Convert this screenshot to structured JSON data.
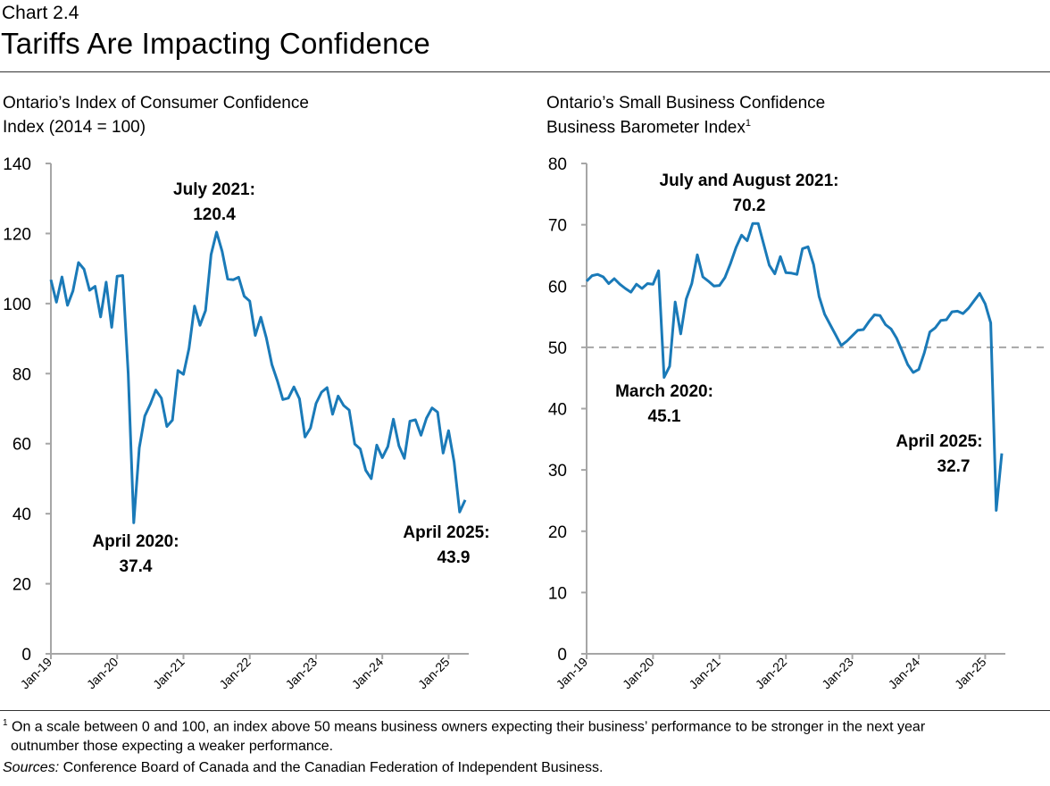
{
  "header": {
    "chart_number": "Chart 2.4",
    "title": "Tariffs Are Impacting Confidence"
  },
  "footnote": {
    "marker": "1",
    "line1": "On a scale between 0 and 100, an index above 50 means business owners expecting their business’ performance to be stronger in the next year",
    "line2": "outnumber those expecting a weaker performance.",
    "sources_label": "Sources:",
    "sources_text": " Conference Board of Canada and the Canadian Federation of Independent Business."
  },
  "colors": {
    "line": "#1a7ab8",
    "reference_line": "#a6a6a6",
    "axis": "#a6a6a6"
  },
  "chart_data": [
    {
      "type": "line",
      "title": "Ontario’s Index of Consumer Confidence",
      "ylabel": "Index (2014 = 100)",
      "ylim": [
        0,
        140
      ],
      "yticks": [
        0,
        20,
        40,
        60,
        80,
        100,
        120,
        140
      ],
      "xtick_labels": [
        "Jan-19",
        "Jan-20",
        "Jan-21",
        "Jan-22",
        "Jan-23",
        "Jan-24",
        "Jan-25"
      ],
      "x_start": "2019-01",
      "x_end": "2025-04",
      "frequency": "monthly",
      "grid": false,
      "legend": "none",
      "values": [
        106.8,
        100.4,
        107.6,
        99.5,
        103.6,
        111.7,
        109.8,
        103.8,
        104.9,
        96.2,
        106.1,
        93.2,
        107.8,
        108.0,
        80.0,
        37.4,
        58.8,
        67.9,
        71.3,
        75.3,
        73.0,
        64.9,
        66.7,
        80.9,
        79.8,
        87.2,
        99.3,
        93.8,
        98.0,
        114.0,
        120.4,
        114.9,
        107.0,
        106.8,
        107.5,
        102.1,
        100.7,
        90.9,
        96.1,
        90.2,
        82.6,
        77.9,
        72.6,
        73.0,
        76.2,
        72.8,
        61.9,
        64.5,
        71.5,
        74.7,
        76.0,
        68.4,
        73.6,
        70.9,
        69.6,
        59.9,
        58.5,
        52.4,
        50.0,
        59.6,
        56.0,
        59.2,
        67.0,
        59.4,
        55.8,
        66.4,
        66.8,
        62.4,
        67.3,
        70.2,
        69.0,
        57.3,
        63.7,
        54.8,
        40.5,
        43.9
      ],
      "annotations": [
        {
          "line1": "July 2021:",
          "line2": "120.4"
        },
        {
          "line1": "April 2020:",
          "line2": "37.4"
        },
        {
          "line1": "April 2025:",
          "line2": "43.9"
        }
      ]
    },
    {
      "type": "line",
      "title": "Ontario’s Small Business Confidence",
      "ylabel": "Business Barometer Index",
      "ylabel_sup": "1",
      "ylim": [
        0,
        80
      ],
      "yticks": [
        0,
        10,
        20,
        30,
        40,
        50,
        60,
        70,
        80
      ],
      "reference_line": 50,
      "xtick_labels": [
        "Jan-19",
        "Jan-20",
        "Jan-21",
        "Jan-22",
        "Jan-23",
        "Jan-24",
        "Jan-25"
      ],
      "x_start": "2019-01",
      "x_end": "2025-04",
      "frequency": "monthly",
      "grid": false,
      "legend": "none",
      "values": [
        60.8,
        61.7,
        61.9,
        61.5,
        60.4,
        61.2,
        60.3,
        59.6,
        59.0,
        60.3,
        59.6,
        60.4,
        60.3,
        62.5,
        45.1,
        46.9,
        57.4,
        52.2,
        57.9,
        60.4,
        65.1,
        61.5,
        60.8,
        60.0,
        60.1,
        61.4,
        63.7,
        66.3,
        68.3,
        67.4,
        70.2,
        70.2,
        66.8,
        63.4,
        62.0,
        64.8,
        62.2,
        62.1,
        61.9,
        66.1,
        66.4,
        63.5,
        58.3,
        55.4,
        53.7,
        52.0,
        50.3,
        51.0,
        51.9,
        52.8,
        52.9,
        54.2,
        55.3,
        55.2,
        53.7,
        53.0,
        51.5,
        49.4,
        47.2,
        45.9,
        46.4,
        49.1,
        52.5,
        53.2,
        54.4,
        54.5,
        55.8,
        55.9,
        55.5,
        56.4,
        57.6,
        58.8,
        57.1,
        54.0,
        23.4,
        32.7
      ],
      "annotations": [
        {
          "line1": "July and August 2021:",
          "line2": "70.2"
        },
        {
          "line1": "March 2020:",
          "line2": "45.1"
        },
        {
          "line1": "April 2025:",
          "line2": "32.7"
        }
      ]
    }
  ]
}
